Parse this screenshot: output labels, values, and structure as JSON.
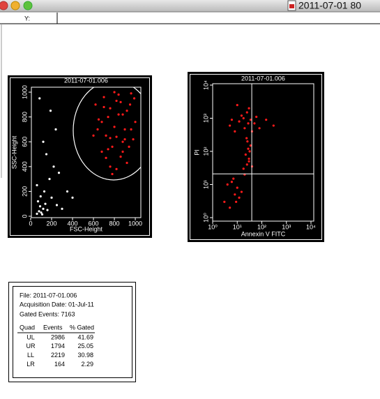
{
  "window": {
    "title": "2011-07-01 80"
  },
  "ruler": {
    "label": "Y:"
  },
  "charts": [
    {
      "type": "scatter",
      "title": "2011-07-01.006",
      "x_label": "FSC-Height",
      "y_label": "SSC-Height",
      "xlim": [
        0,
        1023
      ],
      "ylim": [
        0,
        1023
      ],
      "xticks": [
        0,
        200,
        400,
        600,
        800,
        1000
      ],
      "yticks": [
        0,
        200,
        400,
        600,
        800,
        1000
      ],
      "series": [
        {
          "color": "#ff1a1a",
          "x": [
            620,
            650,
            700,
            720,
            760,
            800,
            840,
            880,
            920,
            960,
            990,
            600,
            680,
            740,
            780,
            820,
            860,
            900,
            950,
            1000,
            640,
            700,
            760,
            820,
            880,
            940,
            680,
            740,
            800,
            860,
            920,
            980,
            720,
            780,
            840,
            900,
            960,
            760,
            820,
            880
          ],
          "y": [
            900,
            780,
            960,
            650,
            870,
            720,
            980,
            600,
            850,
            700,
            950,
            650,
            520,
            800,
            560,
            930,
            480,
            620,
            900,
            760,
            700,
            880,
            400,
            640,
            820,
            560,
            760,
            540,
            1000,
            920,
            430,
            620,
            470,
            340,
            820,
            700,
            990,
            630,
            380,
            520
          ]
        },
        {
          "color": "#ffffff",
          "x": [
            60,
            80,
            100,
            120,
            90,
            110,
            140,
            70,
            160,
            130,
            200,
            250,
            180,
            300,
            220,
            95,
            150,
            60,
            240,
            350,
            270,
            120,
            190,
            400,
            85
          ],
          "y": [
            20,
            40,
            30,
            60,
            80,
            15,
            100,
            120,
            50,
            200,
            150,
            90,
            300,
            60,
            400,
            160,
            500,
            250,
            700,
            200,
            350,
            600,
            850,
            150,
            950
          ]
        }
      ]
    },
    {
      "type": "scatter",
      "title": "2011-07-01.006",
      "x_label": "Annexin V FITC",
      "y_label": "PI",
      "log": true,
      "xlim": [
        1,
        10000
      ],
      "ylim": [
        1,
        10000
      ],
      "xticks": [
        {
          "value": 1,
          "label": "10⁰"
        },
        {
          "value": 10,
          "label": "10¹"
        },
        {
          "value": 100,
          "label": "10²"
        },
        {
          "value": 1000,
          "label": "10³"
        },
        {
          "value": 10000,
          "label": "10⁴"
        }
      ],
      "yticks": [
        {
          "value": 1,
          "label": "10⁰"
        },
        {
          "value": 10,
          "label": "10¹"
        },
        {
          "value": 100,
          "label": "10²"
        },
        {
          "value": 1000,
          "label": "10³"
        },
        {
          "value": 10000,
          "label": "10⁴"
        }
      ],
      "quadrant": [
        39,
        21
      ],
      "series": [
        {
          "color": "#ff1a1a",
          "x": [
            3,
            5,
            8,
            10,
            6,
            12,
            15,
            4,
            7,
            9,
            20,
            25,
            30,
            22,
            28,
            35,
            18,
            26,
            32,
            24,
            30,
            40,
            20,
            28,
            35,
            5,
            8,
            12,
            15,
            25,
            30,
            50,
            80,
            150,
            300,
            10,
            18,
            40,
            60,
            6
          ],
          "y": [
            3,
            2,
            5,
            8,
            12,
            4,
            6,
            10,
            15,
            3,
            20,
            40,
            60,
            80,
            120,
            150,
            30,
            200,
            100,
            250,
            50,
            35,
            500,
            700,
            900,
            600,
            400,
            800,
            1200,
            1500,
            2000,
            700,
            500,
            900,
            600,
            2500,
            1000,
            400,
            1100,
            900
          ]
        }
      ]
    }
  ],
  "stats": {
    "file": "File: 2011-07-01.006",
    "acquisition": "Acquisition Date: 01-Jul-11",
    "gated": "Gated Events: 7163",
    "header": [
      "Quad",
      "Events",
      "% Gated"
    ],
    "rows": [
      [
        "UL",
        2986,
        41.69
      ],
      [
        "UR",
        1794,
        25.05
      ],
      [
        "LL",
        2219,
        30.98
      ],
      [
        "LR",
        164,
        2.29
      ]
    ]
  }
}
